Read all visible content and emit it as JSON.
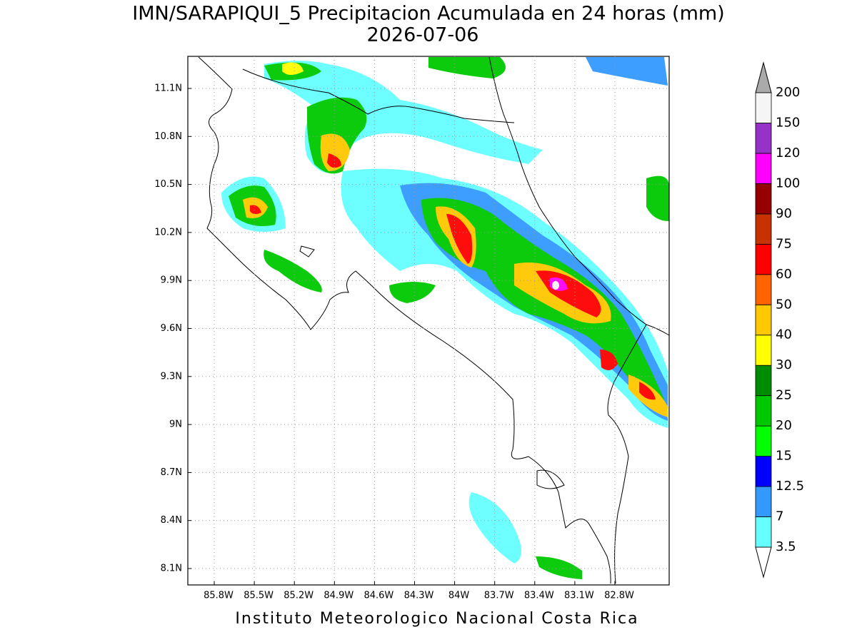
{
  "title": "IMN/SARAPIQUI_5 Precipitacion Acumulada en 24 horas (mm)",
  "subtitle": "2026-07-06",
  "map": {
    "lon_ticks": [
      "85.8W",
      "85.5W",
      "85.2W",
      "84.9W",
      "84.6W",
      "84.3W",
      "84W",
      "83.7W",
      "83.4W",
      "83.1W",
      "82.8W"
    ],
    "lat_ticks": [
      "11.1N",
      "10.8N",
      "10.5N",
      "10.2N",
      "9.9N",
      "9.6N",
      "9.3N",
      "9N",
      "8.7N",
      "8.4N",
      "8.1N"
    ],
    "grid": true
  },
  "colorbar": {
    "labels": [
      3.5,
      7,
      12.5,
      15,
      20,
      25,
      30,
      40,
      50,
      60,
      75,
      90,
      100,
      120,
      150,
      200
    ],
    "colors": [
      "#66ffff",
      "#3399ff",
      "#0000ff",
      "#00ff00",
      "#00c800",
      "#008c00",
      "#ffff00",
      "#ffc800",
      "#ff6400",
      "#ff0000",
      "#c83200",
      "#960000",
      "#ff00ff",
      "#9632c8",
      "#f5f5f5"
    ],
    "under_color": "#ffffff",
    "over_color": "#aaaaaa"
  },
  "footer": "Instituto Meteorologico Nacional Costa Rica"
}
